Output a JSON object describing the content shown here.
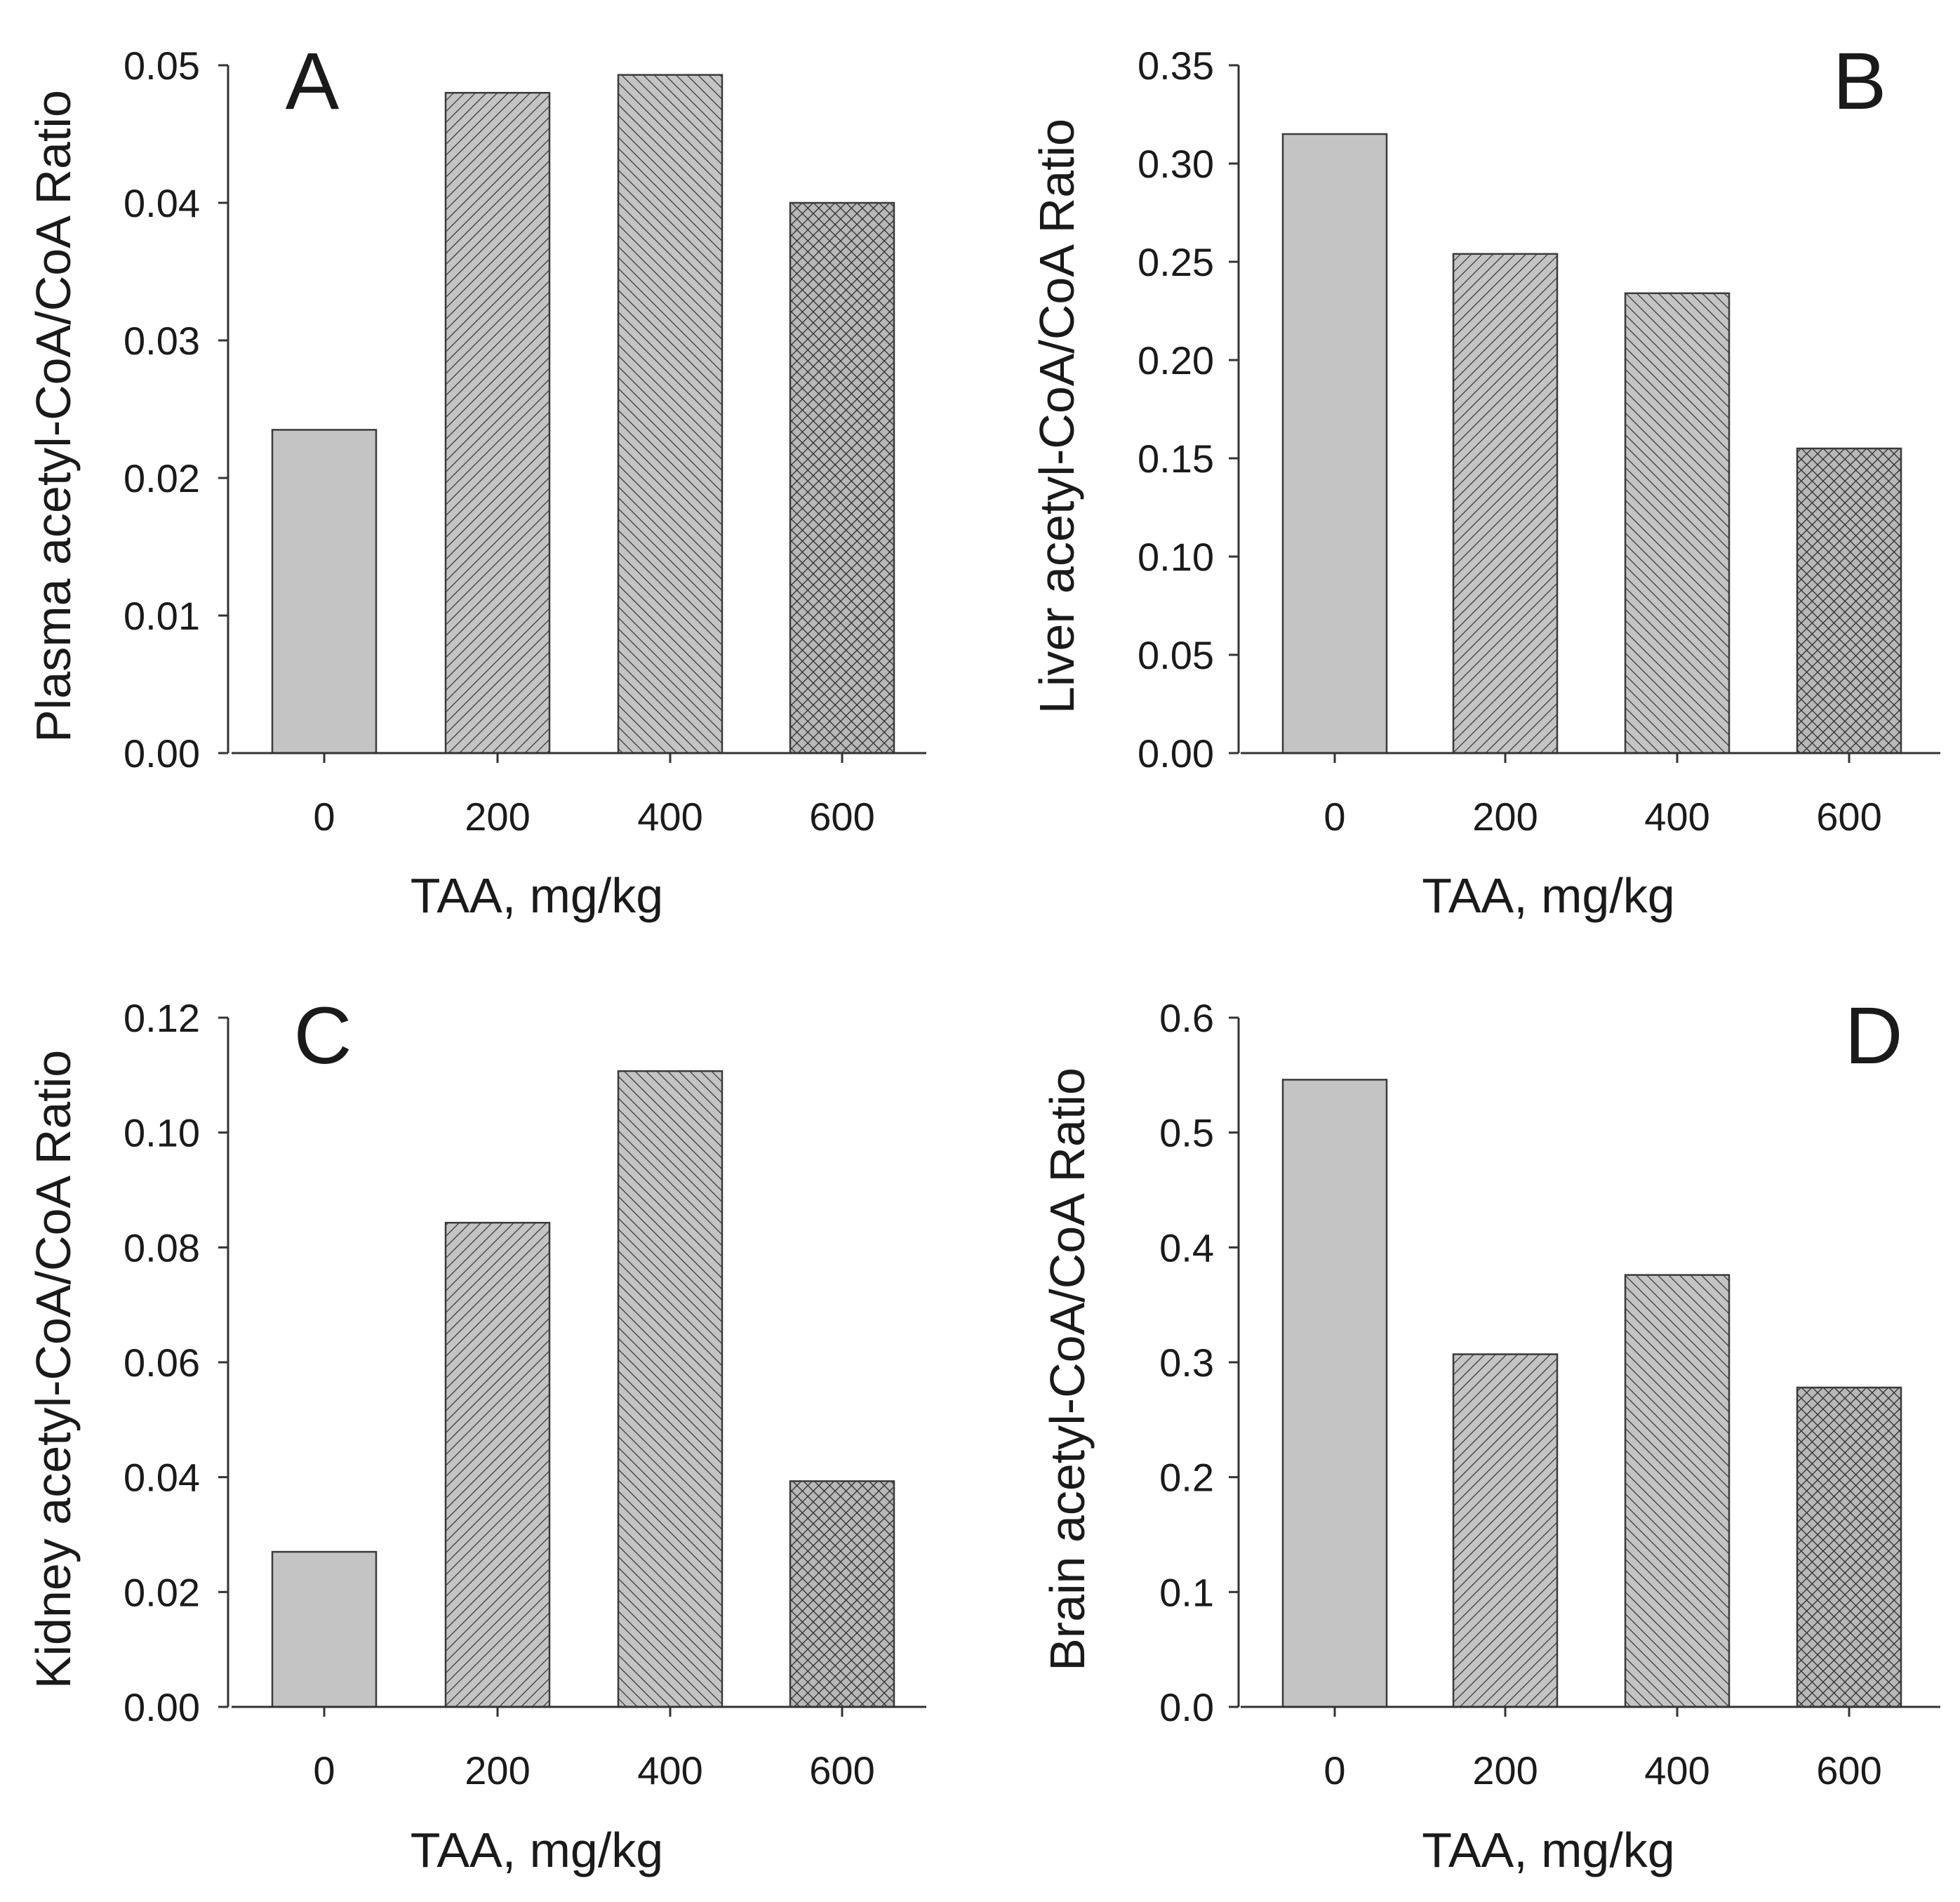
{
  "chart_data": [
    {
      "panel": "A",
      "type": "bar",
      "categories": [
        "0",
        "200",
        "400",
        "600"
      ],
      "values": [
        0.0235,
        0.048,
        0.0493,
        0.04
      ],
      "patterns": [
        "solid",
        "diag-right",
        "diag-left",
        "crosshatch"
      ],
      "ylim": [
        0,
        0.05
      ],
      "yticks": [
        "0.00",
        "0.01",
        "0.02",
        "0.03",
        "0.04",
        "0.05"
      ],
      "xlabel": "TAA, mg/kg",
      "ylabel": "Plasma acetyl-CoA/CoA Ratio"
    },
    {
      "panel": "B",
      "type": "bar",
      "categories": [
        "0",
        "200",
        "400",
        "600"
      ],
      "values": [
        0.315,
        0.254,
        0.234,
        0.155
      ],
      "patterns": [
        "solid",
        "diag-right",
        "diag-left",
        "crosshatch"
      ],
      "ylim": [
        0,
        0.35
      ],
      "yticks": [
        "0.00",
        "0.05",
        "0.10",
        "0.15",
        "0.20",
        "0.25",
        "0.30",
        "0.35"
      ],
      "xlabel": "TAA, mg/kg",
      "ylabel": "Liver acetyl-CoA/CoA Ratio"
    },
    {
      "panel": "C",
      "type": "bar",
      "categories": [
        "0",
        "200",
        "400",
        "600"
      ],
      "values": [
        0.027,
        0.0843,
        0.1107,
        0.0393
      ],
      "patterns": [
        "solid",
        "diag-right",
        "diag-left",
        "crosshatch"
      ],
      "ylim": [
        0,
        0.12
      ],
      "yticks": [
        "0.00",
        "0.02",
        "0.04",
        "0.06",
        "0.08",
        "0.10",
        "0.12"
      ],
      "xlabel": "TAA, mg/kg",
      "ylabel": "Kidney acetyl-CoA/CoA Ratio"
    },
    {
      "panel": "D",
      "type": "bar",
      "categories": [
        "0",
        "200",
        "400",
        "600"
      ],
      "values": [
        0.546,
        0.307,
        0.376,
        0.278
      ],
      "patterns": [
        "solid",
        "diag-right",
        "diag-left",
        "crosshatch"
      ],
      "ylim": [
        0,
        0.6
      ],
      "yticks": [
        "0.0",
        "0.1",
        "0.2",
        "0.3",
        "0.4",
        "0.5",
        "0.6"
      ],
      "xlabel": "TAA, mg/kg",
      "ylabel": "Brain acetyl-CoA/CoA Ratio"
    }
  ],
  "colors": {
    "bar_fill": "#c4c4c4",
    "hatch": "#3d3d3d",
    "axis": "#333333"
  }
}
